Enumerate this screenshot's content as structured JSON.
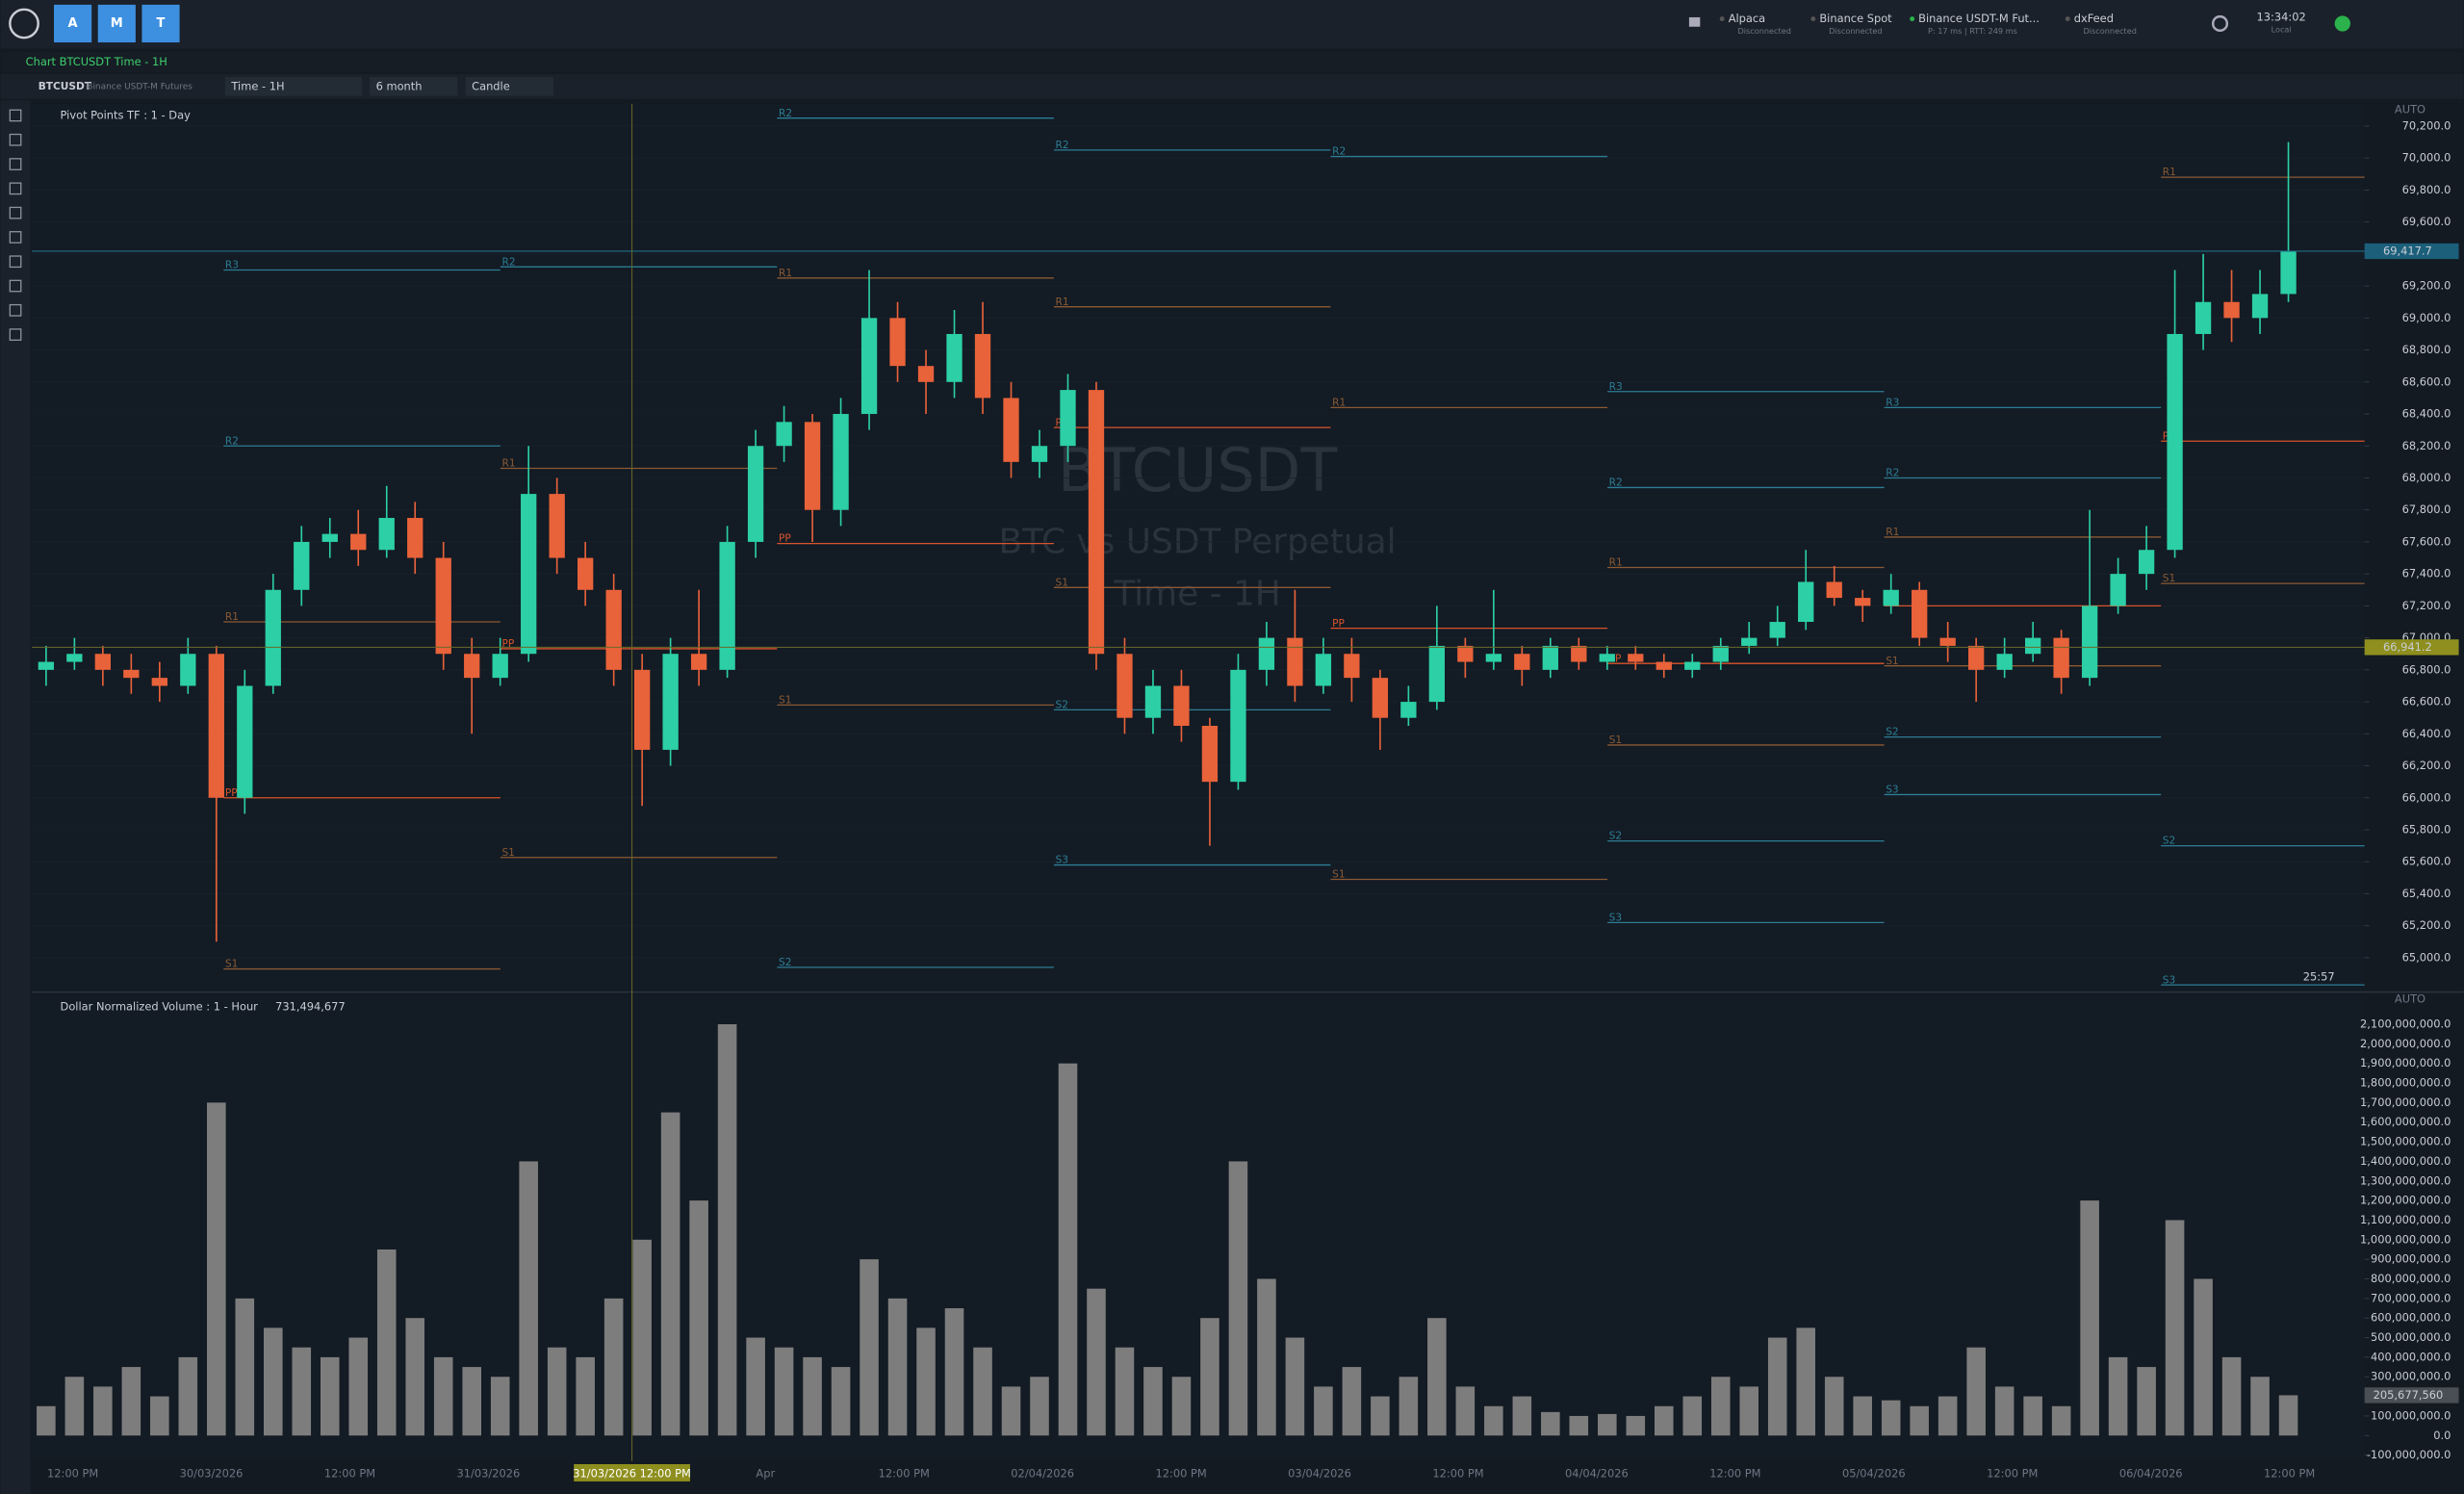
{
  "header": {
    "buttons": [
      "A",
      "M",
      "T"
    ],
    "connections": [
      {
        "name": "Alpaca",
        "status": "Disconnected"
      },
      {
        "name": "Binance Spot",
        "status": "Disconnected"
      },
      {
        "name": "Binance USDT-M Fut...",
        "status": "P: 17 ms | RTT: 249 ms"
      },
      {
        "name": "dxFeed",
        "status": "Disconnected"
      }
    ],
    "clock": "13:34:02",
    "clock_zone": "Local"
  },
  "window_title": "Chart BTCUSDT Time - 1H",
  "toolbar": {
    "symbol": "BTCUSDT",
    "exchange": "Binance USDT-M Futures",
    "timeframe": "Time - 1H",
    "range": "6 month",
    "style": "Candle"
  },
  "watermark": {
    "symbol": "BTCUSDT",
    "description": "BTC vs USDT  Perpetual",
    "timeframe": "Time - 1H"
  },
  "x_axis": {
    "labels": [
      "12:00 PM",
      "30/03/2026",
      "12:00 PM",
      "31/03/2026",
      "12:00 PM",
      "Apr",
      "12:00 PM",
      "02/04/2026",
      "12:00 PM",
      "03/04/2026",
      "12:00 PM",
      "04/04/2026",
      "12:00 PM",
      "05/04/2026",
      "12:00 PM",
      "06/04/2026",
      "12:00 PM"
    ],
    "crosshair_label": "31/03/2026 12:00 PM"
  },
  "chart_data": [
    {
      "type": "candlestick",
      "indicator": "Pivot Points TF : 1 - Day",
      "scale_mode": "AUTO",
      "up_color": "#2ccfa6",
      "down_color": "#e8623a",
      "ylim": [
        64800,
        70340
      ],
      "yticks": [
        {
          "value": 65000,
          "label": "65,000.0"
        },
        {
          "value": 65200,
          "label": "65,200.0"
        },
        {
          "value": 65400,
          "label": "65,400.0"
        },
        {
          "value": 65600,
          "label": "65,600.0"
        },
        {
          "value": 65800,
          "label": "65,800.0"
        },
        {
          "value": 66000,
          "label": "66,000.0"
        },
        {
          "value": 66200,
          "label": "66,200.0"
        },
        {
          "value": 66400,
          "label": "66,400.0"
        },
        {
          "value": 66600,
          "label": "66,600.0"
        },
        {
          "value": 66800,
          "label": "66,800.0"
        },
        {
          "value": 67000,
          "label": "67,000.0"
        },
        {
          "value": 67200,
          "label": "67,200.0"
        },
        {
          "value": 67400,
          "label": "67,400.0"
        },
        {
          "value": 67600,
          "label": "67,600.0"
        },
        {
          "value": 67800,
          "label": "67,800.0"
        },
        {
          "value": 68000,
          "label": "68,000.0"
        },
        {
          "value": 68200,
          "label": "68,200.0"
        },
        {
          "value": 68400,
          "label": "68,400.0"
        },
        {
          "value": 68600,
          "label": "68,600.0"
        },
        {
          "value": 68800,
          "label": "68,800.0"
        },
        {
          "value": 69000,
          "label": "69,000.0"
        },
        {
          "value": 69200,
          "label": "69,200.0"
        },
        {
          "value": 69400,
          "label": "69,400.0"
        },
        {
          "value": 69600,
          "label": "69,600.0"
        },
        {
          "value": 69800,
          "label": "69,800.0"
        },
        {
          "value": 70000,
          "label": "70,000.0"
        },
        {
          "value": 70200,
          "label": "70,200.0"
        }
      ],
      "last_price": {
        "value": 69417.7,
        "label": "69,417.7"
      },
      "crosshair_price": {
        "value": 66941.2,
        "label": "66,941.2"
      },
      "countdown": "25:57",
      "ohlc": [
        [
          66800,
          66950,
          66700,
          66850
        ],
        [
          66850,
          67000,
          66800,
          66900
        ],
        [
          66900,
          66950,
          66700,
          66800
        ],
        [
          66800,
          66900,
          66650,
          66750
        ],
        [
          66750,
          66850,
          66600,
          66700
        ],
        [
          66700,
          67000,
          66650,
          66900
        ],
        [
          66900,
          66950,
          65100,
          66000
        ],
        [
          66000,
          66800,
          65900,
          66700
        ],
        [
          66700,
          67400,
          66650,
          67300
        ],
        [
          67300,
          67700,
          67200,
          67600
        ],
        [
          67600,
          67750,
          67500,
          67650
        ],
        [
          67650,
          67800,
          67450,
          67550
        ],
        [
          67550,
          67950,
          67500,
          67750
        ],
        [
          67750,
          67850,
          67400,
          67500
        ],
        [
          67500,
          67600,
          66800,
          66900
        ],
        [
          66900,
          67000,
          66400,
          66750
        ],
        [
          66750,
          67000,
          66700,
          66900
        ],
        [
          66900,
          68200,
          66850,
          67900
        ],
        [
          67900,
          68000,
          67400,
          67500
        ],
        [
          67500,
          67600,
          67200,
          67300
        ],
        [
          67300,
          67400,
          66700,
          66800
        ],
        [
          66800,
          66900,
          65950,
          66300
        ],
        [
          66300,
          67000,
          66200,
          66900
        ],
        [
          66900,
          67300,
          66700,
          66800
        ],
        [
          66800,
          67700,
          66750,
          67600
        ],
        [
          67600,
          68300,
          67500,
          68200
        ],
        [
          68200,
          68450,
          68100,
          68350
        ],
        [
          68350,
          68400,
          67600,
          67800
        ],
        [
          67800,
          68500,
          67700,
          68400
        ],
        [
          68400,
          69300,
          68300,
          69000
        ],
        [
          69000,
          69100,
          68600,
          68700
        ],
        [
          68700,
          68800,
          68400,
          68600
        ],
        [
          68600,
          69050,
          68500,
          68900
        ],
        [
          68900,
          69100,
          68400,
          68500
        ],
        [
          68500,
          68600,
          68000,
          68100
        ],
        [
          68100,
          68300,
          68000,
          68200
        ],
        [
          68200,
          68650,
          68100,
          68550
        ],
        [
          68550,
          68600,
          66800,
          66900
        ],
        [
          66900,
          67000,
          66400,
          66500
        ],
        [
          66500,
          66800,
          66400,
          66700
        ],
        [
          66700,
          66800,
          66350,
          66450
        ],
        [
          66450,
          66500,
          65700,
          66100
        ],
        [
          66100,
          66900,
          66050,
          66800
        ],
        [
          66800,
          67100,
          66700,
          67000
        ],
        [
          67000,
          67300,
          66600,
          66700
        ],
        [
          66700,
          67000,
          66650,
          66900
        ],
        [
          66900,
          67000,
          66600,
          66750
        ],
        [
          66750,
          66800,
          66300,
          66500
        ],
        [
          66500,
          66700,
          66450,
          66600
        ],
        [
          66600,
          67200,
          66550,
          66950
        ],
        [
          66950,
          67000,
          66750,
          66850
        ],
        [
          66850,
          67300,
          66800,
          66900
        ],
        [
          66900,
          66950,
          66700,
          66800
        ],
        [
          66800,
          67000,
          66750,
          66950
        ],
        [
          66950,
          67000,
          66800,
          66850
        ],
        [
          66850,
          66950,
          66800,
          66900
        ],
        [
          66900,
          66950,
          66800,
          66850
        ],
        [
          66850,
          66900,
          66750,
          66800
        ],
        [
          66800,
          66900,
          66750,
          66850
        ],
        [
          66850,
          67000,
          66800,
          66950
        ],
        [
          66950,
          67100,
          66900,
          67000
        ],
        [
          67000,
          67200,
          66950,
          67100
        ],
        [
          67100,
          67550,
          67050,
          67350
        ],
        [
          67350,
          67450,
          67200,
          67250
        ],
        [
          67250,
          67300,
          67100,
          67200
        ],
        [
          67200,
          67400,
          67150,
          67300
        ],
        [
          67300,
          67350,
          66950,
          67000
        ],
        [
          67000,
          67100,
          66850,
          66950
        ],
        [
          66950,
          67000,
          66600,
          66800
        ],
        [
          66800,
          67000,
          66750,
          66900
        ],
        [
          66900,
          67100,
          66850,
          67000
        ],
        [
          67000,
          67050,
          66650,
          66750
        ],
        [
          66750,
          67800,
          66700,
          67200
        ],
        [
          67200,
          67500,
          67150,
          67400
        ],
        [
          67400,
          67700,
          67300,
          67550
        ],
        [
          67550,
          69300,
          67500,
          68900
        ],
        [
          68900,
          69400,
          68800,
          69100
        ],
        [
          69100,
          69300,
          68850,
          69000
        ],
        [
          69000,
          69300,
          68900,
          69150
        ],
        [
          69150,
          70100,
          69100,
          69417.7
        ]
      ],
      "pivots": [
        [
          {
            "label": "R3",
            "value": 69300,
            "color": "#2d7d95"
          },
          {
            "label": "R2",
            "value": 68200,
            "color": "#2d7d95"
          },
          {
            "label": "R1",
            "value": 67100,
            "color": "#8a5a34"
          },
          {
            "label": "PP",
            "value": 66000,
            "color": "#d9542b"
          },
          {
            "label": "S1",
            "value": 64930,
            "color": "#8a5a34"
          }
        ],
        [
          {
            "label": "R2",
            "value": 69320,
            "color": "#2d7d95"
          },
          {
            "label": "R1",
            "value": 68060,
            "color": "#8a5a34"
          },
          {
            "label": "PP",
            "value": 66932,
            "color": "#d9542b"
          },
          {
            "label": "S1",
            "value": 65627,
            "color": "#8a5a34"
          }
        ],
        [
          {
            "label": "R2",
            "value": 70250,
            "color": "#2d7d95"
          },
          {
            "label": "R1",
            "value": 69250,
            "color": "#8a5a34"
          },
          {
            "label": "PP",
            "value": 67590,
            "color": "#d9542b"
          },
          {
            "label": "S1",
            "value": 66580,
            "color": "#8a5a34"
          },
          {
            "label": "S2",
            "value": 64940,
            "color": "#2d7d95"
          }
        ],
        [
          {
            "label": "R2",
            "value": 70050,
            "color": "#2d7d95"
          },
          {
            "label": "R1",
            "value": 69070,
            "color": "#8a5a34"
          },
          {
            "label": "PP",
            "value": 68315,
            "color": "#d9542b"
          },
          {
            "label": "S1",
            "value": 67315,
            "color": "#8a5a34"
          },
          {
            "label": "S2",
            "value": 66550,
            "color": "#2d7d95"
          },
          {
            "label": "S3",
            "value": 65580,
            "color": "#2d7d95"
          }
        ],
        [
          {
            "label": "R2",
            "value": 70010,
            "color": "#2d7d95"
          },
          {
            "label": "R1",
            "value": 68440,
            "color": "#8a5a34"
          },
          {
            "label": "PP",
            "value": 67060,
            "color": "#d9542b"
          },
          {
            "label": "S1",
            "value": 65490,
            "color": "#8a5a34"
          }
        ],
        [
          {
            "label": "R3",
            "value": 68540,
            "color": "#2d7d95"
          },
          {
            "label": "R2",
            "value": 67940,
            "color": "#2d7d95"
          },
          {
            "label": "R1",
            "value": 67440,
            "color": "#8a5a34"
          },
          {
            "label": "PP",
            "value": 66840,
            "color": "#d9542b"
          },
          {
            "label": "S1",
            "value": 66330,
            "color": "#8a5a34"
          },
          {
            "label": "S2",
            "value": 65730,
            "color": "#2d7d95"
          },
          {
            "label": "S3",
            "value": 65220,
            "color": "#2d7d95"
          }
        ],
        [
          {
            "label": "R3",
            "value": 68440,
            "color": "#2d7d95"
          },
          {
            "label": "R2",
            "value": 68000,
            "color": "#2d7d95"
          },
          {
            "label": "R1",
            "value": 67630,
            "color": "#8a5a34"
          },
          {
            "label": "PP",
            "value": 67200,
            "color": "#d9542b"
          },
          {
            "label": "S1",
            "value": 66825,
            "color": "#8a5a34"
          },
          {
            "label": "S2",
            "value": 66380,
            "color": "#2d7d95"
          },
          {
            "label": "S3",
            "value": 66020,
            "color": "#2d7d95"
          }
        ],
        [
          {
            "label": "R1",
            "value": 69880,
            "color": "#8a5a34"
          },
          {
            "label": "PP",
            "value": 68230,
            "color": "#d9542b"
          },
          {
            "label": "S1",
            "value": 67340,
            "color": "#8a5a34"
          },
          {
            "label": "S2",
            "value": 65700,
            "color": "#2d7d95"
          },
          {
            "label": "S3",
            "value": 64830,
            "color": "#2d7d95"
          }
        ]
      ]
    },
    {
      "type": "bar",
      "title": "Dollar Normalized Volume : 1 - Hour",
      "current_value": "731,494,677",
      "scale_mode": "AUTO",
      "color": "#7d7d7d",
      "ylim": [
        -130000000,
        2156000000
      ],
      "yticks": [
        {
          "value": -100000000,
          "label": "-100,000,000.0"
        },
        {
          "value": 0,
          "label": "0.0"
        },
        {
          "value": 100000000,
          "label": "100,000,000.0"
        },
        {
          "value": 200000000,
          "label": "200,000,000.0"
        },
        {
          "value": 300000000,
          "label": "300,000,000.0"
        },
        {
          "value": 400000000,
          "label": "400,000,000.0"
        },
        {
          "value": 500000000,
          "label": "500,000,000.0"
        },
        {
          "value": 600000000,
          "label": "600,000,000.0"
        },
        {
          "value": 700000000,
          "label": "700,000,000.0"
        },
        {
          "value": 800000000,
          "label": "800,000,000.0"
        },
        {
          "value": 900000000,
          "label": "900,000,000.0"
        },
        {
          "value": 1000000000,
          "label": "1,000,000,000.0"
        },
        {
          "value": 1100000000,
          "label": "1,100,000,000.0"
        },
        {
          "value": 1200000000,
          "label": "1,200,000,000.0"
        },
        {
          "value": 1300000000,
          "label": "1,300,000,000.0"
        },
        {
          "value": 1400000000,
          "label": "1,400,000,000.0"
        },
        {
          "value": 1500000000,
          "label": "1,500,000,000.0"
        },
        {
          "value": 1600000000,
          "label": "1,600,000,000.0"
        },
        {
          "value": 1700000000,
          "label": "1,700,000,000.0"
        },
        {
          "value": 1800000000,
          "label": "1,800,000,000.0"
        },
        {
          "value": 1900000000,
          "label": "1,900,000,000.0"
        },
        {
          "value": 2000000000,
          "label": "2,000,000,000.0"
        },
        {
          "value": 2100000000,
          "label": "2,100,000,000.0"
        }
      ],
      "last_label": {
        "value": 205677560,
        "label": "205,677,560"
      },
      "values": [
        150000000,
        300000000,
        250000000,
        350000000,
        200000000,
        400000000,
        1700000000,
        700000000,
        550000000,
        450000000,
        400000000,
        500000000,
        950000000,
        600000000,
        400000000,
        350000000,
        300000000,
        1400000000,
        450000000,
        400000000,
        700000000,
        1000000000,
        1650000000,
        1200000000,
        2100000000,
        500000000,
        450000000,
        400000000,
        350000000,
        900000000,
        700000000,
        550000000,
        650000000,
        450000000,
        250000000,
        300000000,
        1900000000,
        750000000,
        450000000,
        350000000,
        300000000,
        600000000,
        1400000000,
        800000000,
        500000000,
        250000000,
        350000000,
        200000000,
        300000000,
        600000000,
        250000000,
        150000000,
        200000000,
        120000000,
        100000000,
        110000000,
        100000000,
        150000000,
        200000000,
        300000000,
        250000000,
        500000000,
        550000000,
        300000000,
        200000000,
        180000000,
        150000000,
        200000000,
        450000000,
        250000000,
        200000000,
        150000000,
        1200000000,
        400000000,
        350000000,
        1100000000,
        800000000,
        400000000,
        300000000,
        205677560
      ]
    }
  ]
}
